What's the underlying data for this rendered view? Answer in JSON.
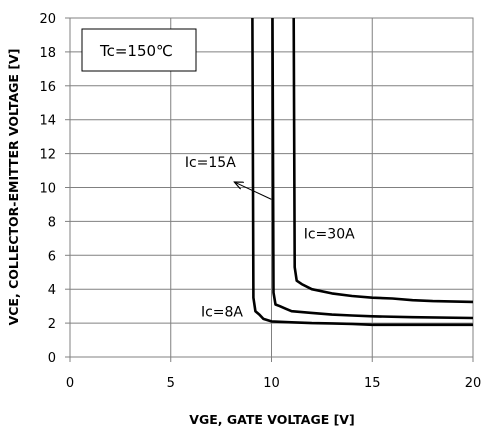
{
  "chart_data": {
    "type": "line",
    "title": "",
    "xlabel": "VGE, GATE VOLTAGE [V]",
    "ylabel": "VCE, COLLECTOR-EMITTER  VOLTAGE [V]",
    "xlim": [
      0,
      20
    ],
    "ylim": [
      0,
      20
    ],
    "xticks": [
      0,
      5,
      10,
      15,
      20
    ],
    "yticks": [
      0,
      2,
      4,
      6,
      8,
      10,
      12,
      14,
      16,
      18,
      20
    ],
    "grid": true,
    "condition_label": "Tc=150℃",
    "series": [
      {
        "name": "Ic=8A",
        "x": [
          9.05,
          9.1,
          9.2,
          9.4,
          9.6,
          10.0,
          11.0,
          12.0,
          13.0,
          14.0,
          15.0,
          17.0,
          20.0
        ],
        "y": [
          20.0,
          3.5,
          2.7,
          2.5,
          2.25,
          2.1,
          2.05,
          2.0,
          1.98,
          1.95,
          1.9,
          1.9,
          1.9
        ]
      },
      {
        "name": "Ic=15A",
        "x": [
          10.05,
          10.1,
          10.2,
          10.4,
          10.7,
          11.0,
          12.0,
          13.0,
          14.0,
          15.0,
          17.0,
          20.0
        ],
        "y": [
          20.0,
          3.8,
          3.1,
          3.0,
          2.85,
          2.7,
          2.6,
          2.5,
          2.45,
          2.4,
          2.35,
          2.3
        ]
      },
      {
        "name": "Ic=30A",
        "x": [
          11.1,
          11.15,
          11.25,
          11.5,
          12.0,
          13.0,
          14.0,
          15.0,
          16.0,
          17.0,
          18.0,
          20.0
        ],
        "y": [
          20.0,
          5.3,
          4.5,
          4.3,
          4.0,
          3.75,
          3.6,
          3.5,
          3.45,
          3.35,
          3.3,
          3.25
        ]
      }
    ],
    "annotations": [
      {
        "text": "Ic=15A",
        "x": 5.7,
        "y": 11.2,
        "arrow_from": [
          10.0,
          9.3
        ],
        "arrow_to": [
          8.2,
          10.3
        ]
      },
      {
        "text": "Ic=30A",
        "x": 11.6,
        "y": 7.0
      },
      {
        "text": "Ic=8A",
        "x": 6.5,
        "y": 2.4
      }
    ]
  }
}
